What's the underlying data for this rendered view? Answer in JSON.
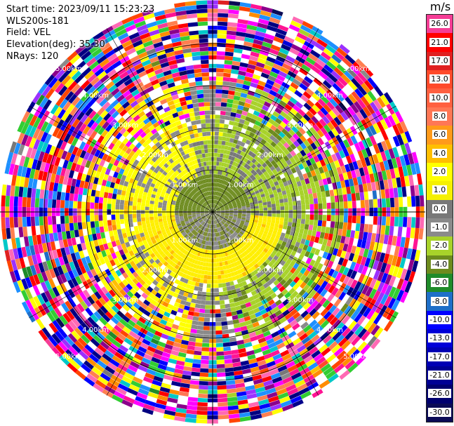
{
  "header": {
    "start_time_label": "Start time:",
    "start_time_value": "2023/09/11 15:23:23",
    "instrument": "WLS200s-181",
    "field_label": "Field:",
    "field_value": "VEL",
    "elevation_label": "Elevation(deg):",
    "elevation_value": "35.30",
    "nrays_label": "NRays:",
    "nrays_value": "120"
  },
  "colorbar": {
    "title": "m/s",
    "levels": [
      {
        "label": "26.0",
        "color": "#f53d95"
      },
      {
        "label": "21.0",
        "color": "#ff0000"
      },
      {
        "label": "17.0",
        "color": "#e02020"
      },
      {
        "label": "13.0",
        "color": "#ff4a2a"
      },
      {
        "label": "10.0",
        "color": "#ff6040"
      },
      {
        "label": "8.0",
        "color": "#ff7755"
      },
      {
        "label": "6.0",
        "color": "#ff9a1a"
      },
      {
        "label": "4.0",
        "color": "#ffbf00"
      },
      {
        "label": "2.0",
        "color": "#ffff00"
      },
      {
        "label": "1.0",
        "color": "#f5f000"
      },
      {
        "label": "0.0",
        "color": "#787878"
      },
      {
        "label": "-1.0",
        "color": "#8a8a8a"
      },
      {
        "label": "-2.0",
        "color": "#a8d22a"
      },
      {
        "label": "-4.0",
        "color": "#6d8b1e"
      },
      {
        "label": "-6.0",
        "color": "#1f8b2a"
      },
      {
        "label": "-8.0",
        "color": "#1e6fc8"
      },
      {
        "label": "-10.0",
        "color": "#0000ff"
      },
      {
        "label": "-13.0",
        "color": "#0000d8"
      },
      {
        "label": "-17.0",
        "color": "#0000b4"
      },
      {
        "label": "-21.0",
        "color": "#000094"
      },
      {
        "label": "-26.0",
        "color": "#00006e"
      },
      {
        "label": "-30.0",
        "color": "#0a0a55"
      }
    ]
  },
  "range_rings": [
    "1.00km",
    "2.00km",
    "3.00km",
    "4.00km",
    "5.00km"
  ]
}
